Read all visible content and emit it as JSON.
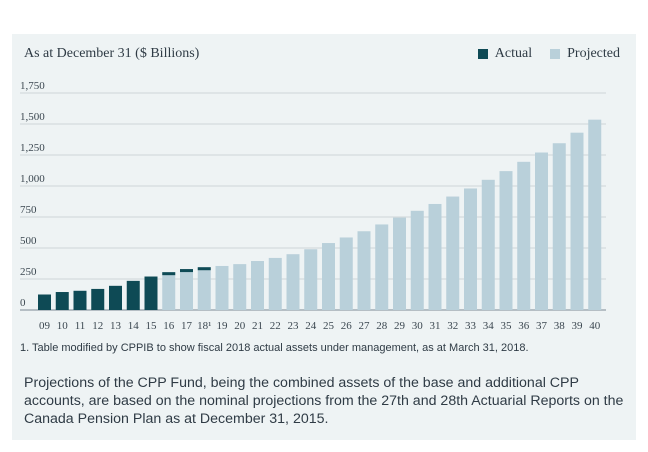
{
  "chart_data": {
    "type": "bar",
    "subtitle": "As at December 31 ($ Billions)",
    "legend": [
      {
        "label": "Actual",
        "color": "#0e4a55"
      },
      {
        "label": "Projected",
        "color": "#b9d0da"
      }
    ],
    "legend_position": "top-right",
    "y_ticks": [
      "1,750",
      "1,500",
      "1,250",
      "1,000",
      "750",
      "500",
      "250",
      "0"
    ],
    "ylim": [
      0,
      1750
    ],
    "grid": true,
    "categories": [
      "09",
      "10",
      "11",
      "12",
      "13",
      "14",
      "15",
      "16",
      "17",
      "18¹",
      "19",
      "20",
      "21",
      "22",
      "23",
      "24",
      "25",
      "26",
      "27",
      "28",
      "29",
      "30",
      "31",
      "32",
      "33",
      "34",
      "35",
      "36",
      "37",
      "38",
      "39",
      "40"
    ],
    "series": [
      {
        "name": "Actual",
        "values": [
          125,
          145,
          155,
          170,
          195,
          235,
          270,
          290,
          300,
          315,
          null,
          null,
          null,
          null,
          null,
          null,
          null,
          null,
          null,
          null,
          null,
          null,
          null,
          null,
          null,
          null,
          null,
          null,
          null,
          null,
          null,
          null
        ]
      },
      {
        "name": "Projected",
        "values": [
          null,
          null,
          null,
          null,
          null,
          null,
          null,
          305,
          330,
          345,
          355,
          370,
          395,
          420,
          450,
          490,
          540,
          585,
          635,
          690,
          745,
          800,
          855,
          915,
          980,
          1050,
          1120,
          1195,
          1270,
          1345,
          1430,
          1535
        ]
      }
    ]
  },
  "footnote": "1. Table modified by CPPIB to show fiscal 2018 actual assets under management, as at March 31, 2018.",
  "caption": "Projections of the CPP Fund, being the combined assets of the base and additional CPP accounts, are based on the nominal projections from the 27th and 28th Actuarial Reports on the Canada Pension Plan as at December 31, 2015."
}
